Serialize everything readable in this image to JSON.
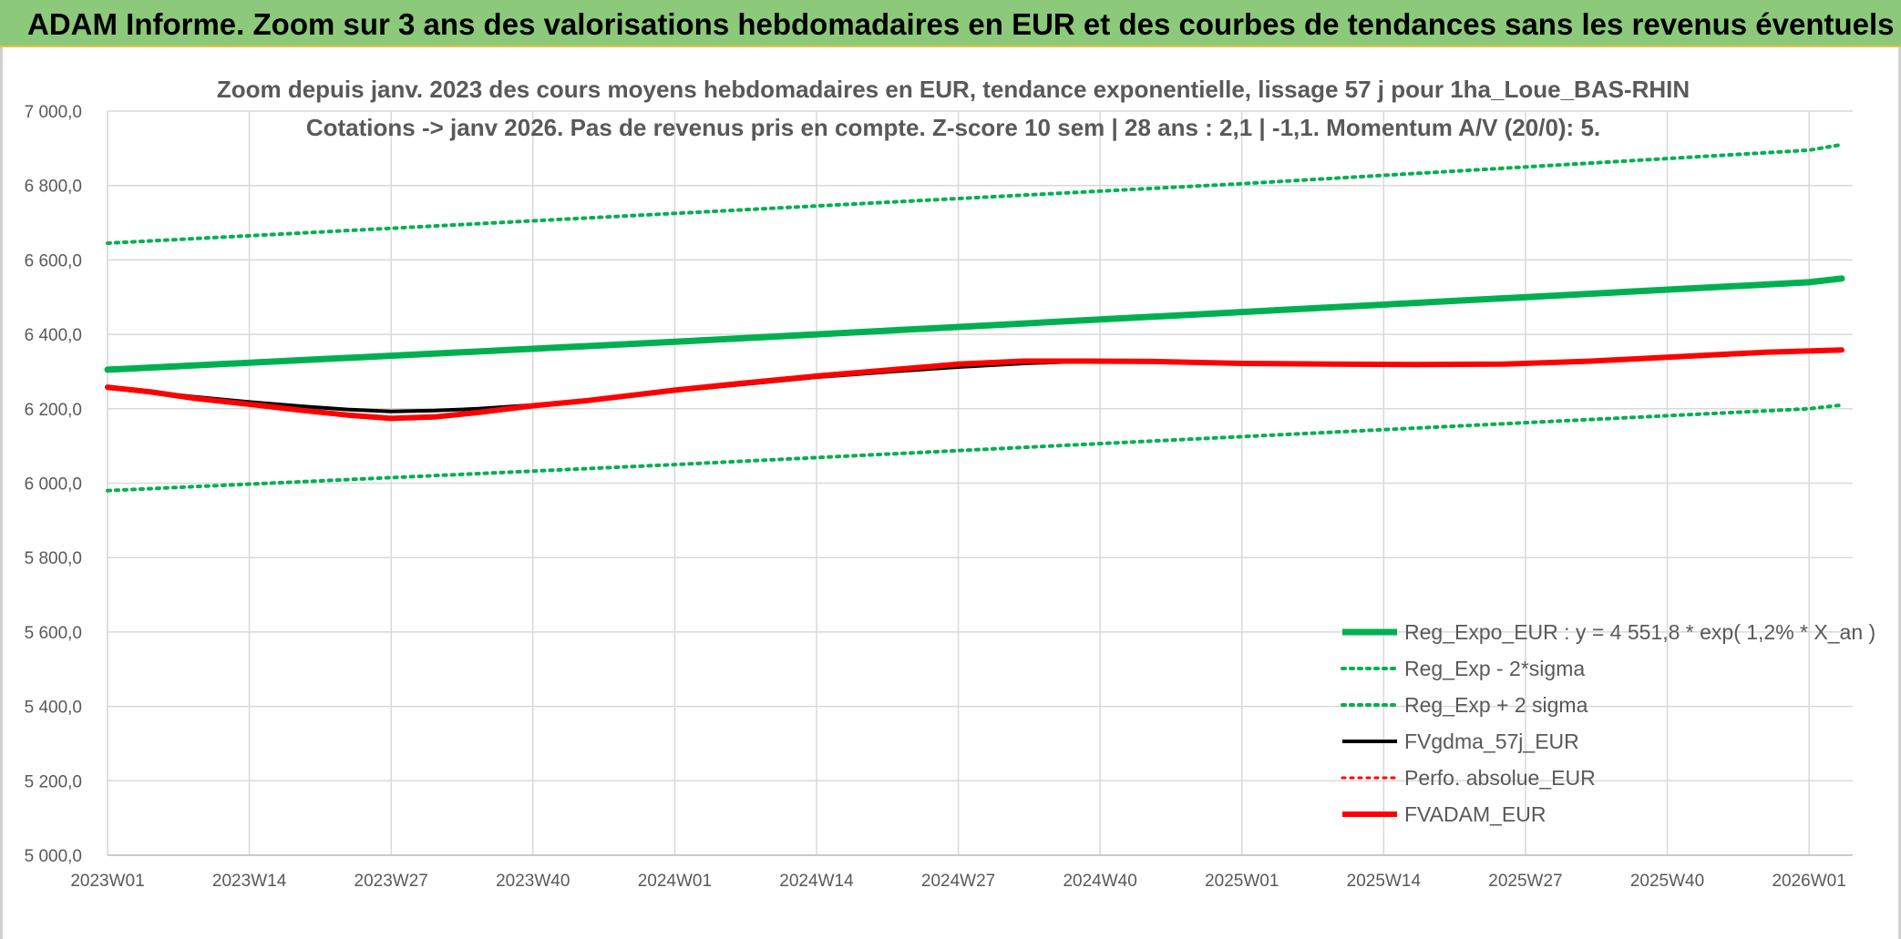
{
  "banner": {
    "title": "ADAM Informe. Zoom sur 3 ans des valorisations hebdomadaires en EUR et des courbes de tendances sans les revenus éventuels"
  },
  "chart_data": {
    "type": "line",
    "title_lines": [
      "Zoom depuis janv. 2023 des cours moyens hebdomadaires en EUR, tendance exponentielle, lissage 57 j pour 1ha_Loue_BAS-RHIN",
      "Cotations -> janv 2026. Pas de revenus pris en compte. Z-score 10 sem | 28 ans : 2,1 | -1,1. Momentum A/V (20/0): 5."
    ],
    "xlabel": "",
    "ylabel": "",
    "ylim": [
      5000,
      7000
    ],
    "y_ticks": [
      "5 000,0",
      "5 200,0",
      "5 400,0",
      "5 600,0",
      "5 800,0",
      "6 000,0",
      "6 200,0",
      "6 400,0",
      "6 600,0",
      "6 800,0",
      "7 000,0"
    ],
    "x_range": [
      0,
      160
    ],
    "x_tick_labels": [
      "2023W01",
      "2023W14",
      "2023W27",
      "2023W40",
      "2024W01",
      "2024W14",
      "2024W27",
      "2024W40",
      "2025W01",
      "2025W14",
      "2025W27",
      "2025W40",
      "2026W01"
    ],
    "grid": true,
    "legend_position": "bottom-right",
    "series": [
      {
        "name": "Reg_Expo_EUR : y = 4 551,8 * exp( 1,2% *  X_an )",
        "color": "#00b050",
        "style": "solid",
        "width": 7,
        "points": [
          [
            0,
            6305
          ],
          [
            52,
            6380
          ],
          [
            104,
            6460
          ],
          [
            156,
            6540
          ],
          [
            159,
            6550
          ]
        ]
      },
      {
        "name": "Reg_Exp - 2*sigma",
        "color": "#00b050",
        "style": "dotted",
        "width": 4,
        "points": [
          [
            0,
            5980
          ],
          [
            52,
            6050
          ],
          [
            104,
            6125
          ],
          [
            156,
            6200
          ],
          [
            159,
            6210
          ]
        ]
      },
      {
        "name": "Reg_Exp + 2 sigma",
        "color": "#00b050",
        "style": "dotted",
        "width": 4,
        "points": [
          [
            0,
            6645
          ],
          [
            52,
            6725
          ],
          [
            104,
            6805
          ],
          [
            156,
            6895
          ],
          [
            159,
            6910
          ]
        ]
      },
      {
        "name": "FVgdma_57j_EUR",
        "color": "#000000",
        "style": "solid",
        "width": 4,
        "points": [
          [
            0,
            6255
          ],
          [
            4,
            6245
          ],
          [
            8,
            6232
          ],
          [
            13,
            6218
          ],
          [
            18,
            6206
          ],
          [
            22,
            6198
          ],
          [
            26,
            6193
          ],
          [
            30,
            6195
          ],
          [
            34,
            6200
          ],
          [
            39,
            6210
          ],
          [
            44,
            6222
          ],
          [
            52,
            6248
          ],
          [
            58,
            6265
          ],
          [
            65,
            6285
          ],
          [
            72,
            6300
          ],
          [
            78,
            6312
          ],
          [
            84,
            6322
          ],
          [
            90,
            6328
          ],
          [
            96,
            6327
          ],
          [
            104,
            6322
          ],
          [
            112,
            6320
          ],
          [
            120,
            6319
          ],
          [
            128,
            6321
          ],
          [
            136,
            6327
          ],
          [
            144,
            6338
          ],
          [
            152,
            6350
          ],
          [
            159,
            6357
          ]
        ]
      },
      {
        "name": "Perfo. absolue_EUR",
        "color": "#ff0000",
        "style": "dotted",
        "width": 3,
        "points": []
      },
      {
        "name": "FVADAM_EUR",
        "color": "#ff0000",
        "style": "solid",
        "width": 6,
        "points": [
          [
            0,
            6258
          ],
          [
            4,
            6245
          ],
          [
            8,
            6228
          ],
          [
            13,
            6212
          ],
          [
            18,
            6195
          ],
          [
            22,
            6183
          ],
          [
            26,
            6174
          ],
          [
            30,
            6178
          ],
          [
            34,
            6190
          ],
          [
            39,
            6208
          ],
          [
            44,
            6222
          ],
          [
            52,
            6250
          ],
          [
            58,
            6268
          ],
          [
            65,
            6288
          ],
          [
            72,
            6305
          ],
          [
            78,
            6320
          ],
          [
            84,
            6328
          ],
          [
            90,
            6328
          ],
          [
            96,
            6327
          ],
          [
            104,
            6322
          ],
          [
            112,
            6320
          ],
          [
            120,
            6319
          ],
          [
            128,
            6320
          ],
          [
            136,
            6328
          ],
          [
            144,
            6340
          ],
          [
            152,
            6352
          ],
          [
            159,
            6358
          ]
        ]
      }
    ]
  }
}
